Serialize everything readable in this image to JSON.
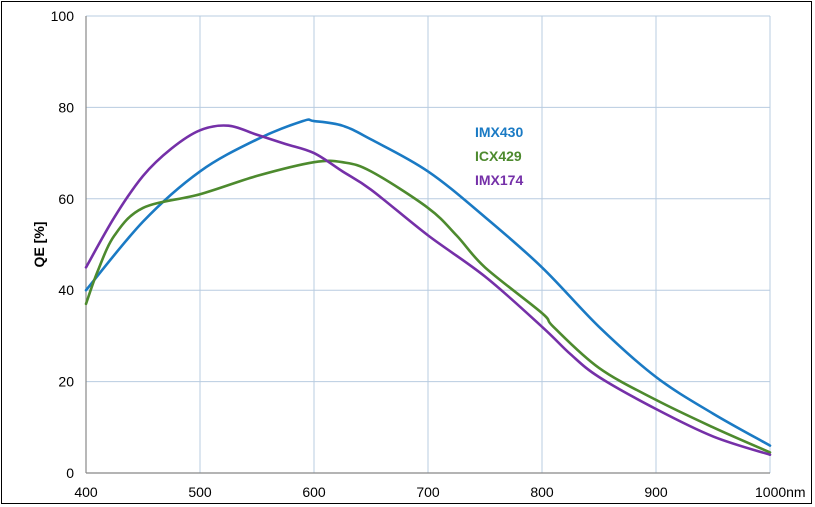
{
  "chart_data": {
    "type": "line",
    "title": "",
    "xlabel": "",
    "ylabel": "QE [%]",
    "xlim": [
      400,
      1000
    ],
    "ylim": [
      0,
      100
    ],
    "x_unit_suffix": "nm",
    "xticks": [
      400,
      500,
      600,
      700,
      800,
      900,
      1000
    ],
    "xtick_labels": [
      "400",
      "500",
      "600",
      "700",
      "800",
      "900",
      "1000nm"
    ],
    "yticks": [
      0,
      20,
      40,
      60,
      80,
      100
    ],
    "ytick_labels": [
      "0",
      "20",
      "40",
      "60",
      "80",
      "100"
    ],
    "grid": true,
    "legend": "top-right, inside plot",
    "series": [
      {
        "name": "IMX430",
        "color": "#1a7ac4",
        "x": [
          400,
          450,
          500,
          550,
          590,
          600,
          625,
          650,
          700,
          750,
          800,
          850,
          900,
          950,
          1000
        ],
        "y": [
          40,
          55,
          66,
          73,
          77,
          77,
          76,
          73,
          66,
          56,
          45,
          32,
          21,
          13,
          6
        ]
      },
      {
        "name": "ICX429",
        "color": "#4d8a2e",
        "x": [
          400,
          410,
          425,
          450,
          500,
          550,
          600,
          625,
          650,
          700,
          725,
          750,
          800,
          810,
          850,
          900,
          950,
          1000
        ],
        "y": [
          37,
          44,
          52,
          58,
          61,
          65,
          68,
          68,
          66,
          58,
          52,
          45,
          35,
          32,
          23,
          16,
          10,
          4.5
        ]
      },
      {
        "name": "IMX174",
        "color": "#7530a8",
        "x": [
          400,
          425,
          450,
          475,
          500,
          525,
          550,
          575,
          600,
          625,
          650,
          700,
          750,
          800,
          825,
          850,
          900,
          950,
          1000
        ],
        "y": [
          45,
          56,
          65,
          71,
          75,
          76,
          74,
          72,
          70,
          66,
          62,
          52,
          43,
          32,
          26,
          21,
          14,
          8,
          4
        ]
      }
    ]
  }
}
